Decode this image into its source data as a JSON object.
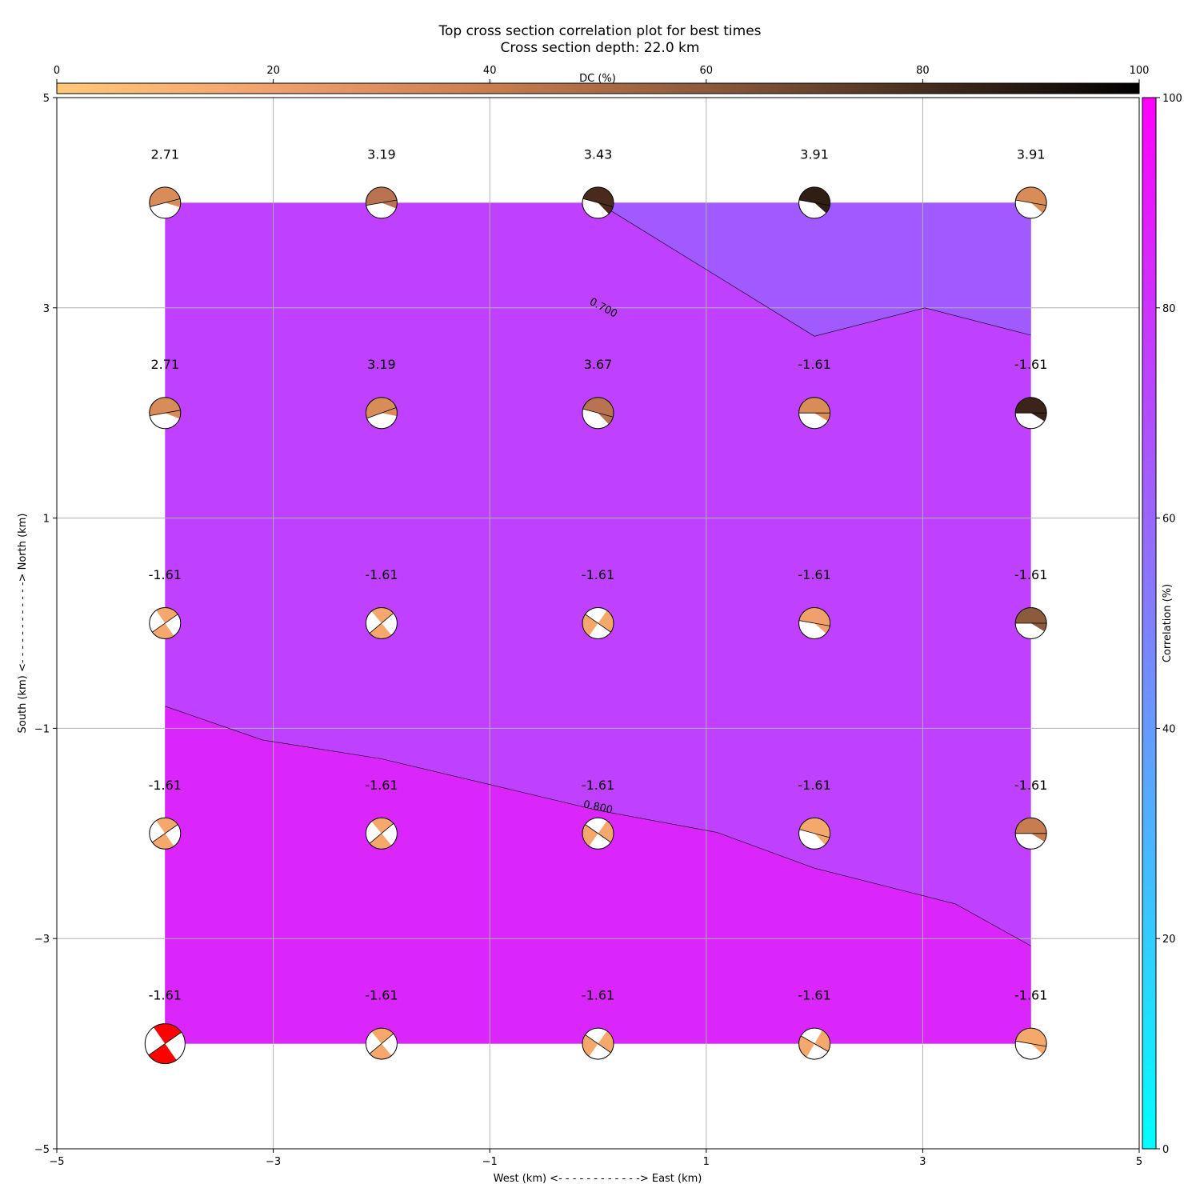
{
  "chart_data": {
    "type": "heatmap",
    "title": "Top cross section correlation plot for best times",
    "subtitle": "Cross section depth: 22.0 km",
    "xlabel": "West (km) <- - - - - - - - - - - -> East (km)",
    "ylabel": "South (km) <- - - - - - - - - - - -> North (km)",
    "xlim": [
      -5,
      5
    ],
    "ylim": [
      -5,
      5
    ],
    "xticks": [
      -5,
      -3,
      -1,
      1,
      3,
      5
    ],
    "yticks": [
      -5,
      -3,
      -1,
      1,
      3,
      5
    ],
    "xtick_labels": [
      "−5",
      "−3",
      "−1",
      "1",
      "3",
      "5"
    ],
    "ytick_labels": [
      "−5",
      "−3",
      "−1",
      "1",
      "3",
      "5"
    ],
    "grid": true,
    "x": [
      -4,
      -2,
      0,
      2,
      4
    ],
    "y": [
      4,
      2,
      0,
      -2,
      -4
    ],
    "labels": [
      [
        "2.71",
        "3.19",
        "3.43",
        "3.91",
        "3.91"
      ],
      [
        "2.71",
        "3.19",
        "3.67",
        "-1.61",
        "-1.61"
      ],
      [
        "-1.61",
        "-1.61",
        "-1.61",
        "-1.61",
        "-1.61"
      ],
      [
        "-1.61",
        "-1.61",
        "-1.61",
        "-1.61",
        "-1.61"
      ],
      [
        "-1.61",
        "-1.61",
        "-1.61",
        "-1.61",
        "-1.61"
      ]
    ],
    "correlation_colorbar": {
      "label": "Correlation (%)",
      "range": [
        0,
        100
      ],
      "ticks": [
        0,
        20,
        40,
        60,
        80,
        100
      ],
      "colors": [
        "#00ffff",
        "#ff00ff"
      ],
      "position": "right"
    },
    "dc_colorbar": {
      "label": "DC (%)",
      "range": [
        0,
        100
      ],
      "ticks": [
        0,
        20,
        40,
        60,
        80,
        100
      ],
      "colors": [
        "#ffc878",
        "#f0a06e",
        "#c87d50",
        "#8c5a3c",
        "#462d1e",
        "#000000"
      ],
      "position": "top"
    },
    "regions": [
      {
        "level": "<0.800",
        "color": "#bf40fe"
      },
      {
        "level": ">=0.800",
        "color": "#da25fb"
      },
      {
        "level": "<0.700",
        "color": "#a05aff"
      }
    ],
    "contours": [
      {
        "label": "0.700",
        "points": [
          [
            0,
            4
          ],
          [
            2,
            2.73
          ],
          [
            3.02,
            3.0
          ],
          [
            4,
            2.74
          ]
        ],
        "label_at": [
          0.05,
          3.0
        ]
      },
      {
        "label": "0.800",
        "points": [
          [
            -4,
            -0.79
          ],
          [
            -3.1,
            -1.11
          ],
          [
            -2.0,
            -1.29
          ],
          [
            0,
            -1.78
          ],
          [
            1.1,
            -1.99
          ],
          [
            2,
            -2.33
          ],
          [
            3.3,
            -2.67
          ],
          [
            4,
            -3.07
          ]
        ],
        "label_at": [
          0,
          -1.75
        ]
      }
    ],
    "beachballs": [
      {
        "x": -4,
        "y": 4,
        "color": "#d88c58",
        "angle": -15
      },
      {
        "x": -2,
        "y": 4,
        "color": "#b87350",
        "angle": -10
      },
      {
        "x": 0,
        "y": 4,
        "color": "#4a2a1c",
        "angle": 15
      },
      {
        "x": 2,
        "y": 4,
        "color": "#2e1e14",
        "angle": 10
      },
      {
        "x": 4,
        "y": 4,
        "color": "#d88c58",
        "angle": 10
      },
      {
        "x": -4,
        "y": 2,
        "color": "#d88c58",
        "angle": -10
      },
      {
        "x": -2,
        "y": 2,
        "color": "#d88c58",
        "angle": -20
      },
      {
        "x": 0,
        "y": 2,
        "color": "#b87350",
        "angle": 15
      },
      {
        "x": 2,
        "y": 2,
        "color": "#d88c58",
        "angle": 0
      },
      {
        "x": 4,
        "y": 2,
        "color": "#3c241a",
        "angle": 0
      },
      {
        "x": -4,
        "y": 0,
        "color": "#f5a86c",
        "angle": -35
      },
      {
        "x": -2,
        "y": 0,
        "color": "#f5a86c",
        "angle": -40
      },
      {
        "x": 0,
        "y": 0,
        "color": "#f5a86c",
        "angle": 35
      },
      {
        "x": 2,
        "y": 0,
        "color": "#f0a06a",
        "angle": 10
      },
      {
        "x": 4,
        "y": 0,
        "color": "#8c5a3c",
        "angle": 0
      },
      {
        "x": -4,
        "y": -2,
        "color": "#f5a86c",
        "angle": -35
      },
      {
        "x": -2,
        "y": -2,
        "color": "#f5a86c",
        "angle": -40
      },
      {
        "x": 0,
        "y": -2,
        "color": "#f5a86c",
        "angle": 35
      },
      {
        "x": 2,
        "y": -2,
        "color": "#f5a86c",
        "angle": 15
      },
      {
        "x": 4,
        "y": -2,
        "color": "#c87d50",
        "angle": 0
      },
      {
        "x": -4,
        "y": -4,
        "color": "#ff0000",
        "angle": -35,
        "highlight": true
      },
      {
        "x": -2,
        "y": -4,
        "color": "#f5a86c",
        "angle": -40
      },
      {
        "x": 0,
        "y": -4,
        "color": "#f5a86c",
        "angle": 35
      },
      {
        "x": 2,
        "y": -4,
        "color": "#f5a86c",
        "angle": 30
      },
      {
        "x": 4,
        "y": -4,
        "color": "#f5a86c",
        "angle": 10
      }
    ]
  }
}
